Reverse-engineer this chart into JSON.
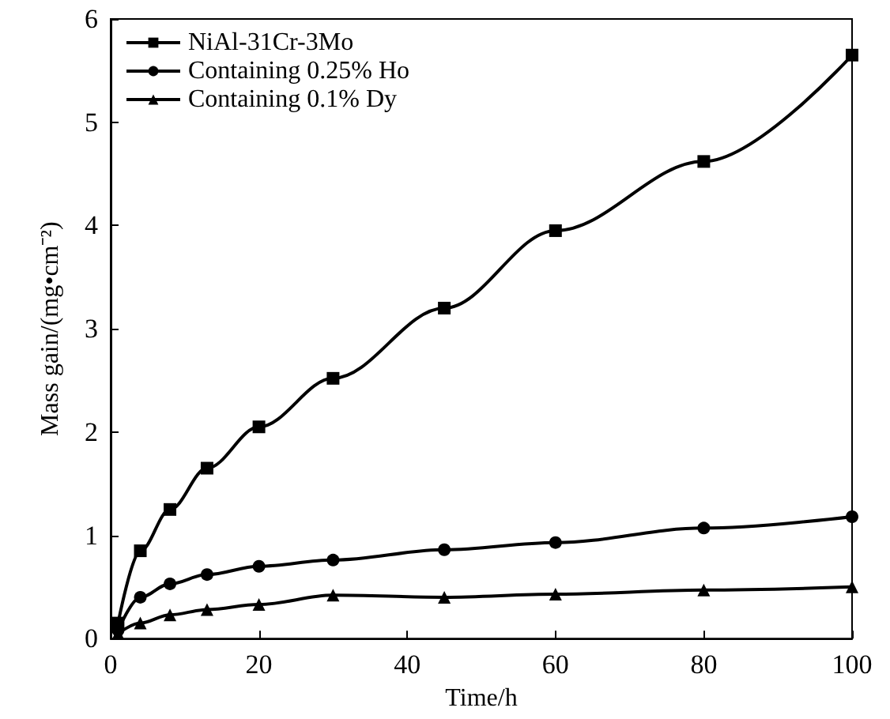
{
  "chart_data": {
    "type": "line",
    "xlabel": "Time/h",
    "ylabel": "Mass gain/(mg•cm⁻²)",
    "xlim": [
      0,
      100
    ],
    "xticks": [
      0,
      20,
      40,
      60,
      80,
      100
    ],
    "ylim": [
      0,
      6
    ],
    "yticks": [
      0,
      1,
      2,
      3,
      4,
      5,
      6
    ],
    "grid": false,
    "legend": "top left",
    "line_style": "solid",
    "series": [
      {
        "name": "NiAl-31Cr-3Mo",
        "color": "#000000",
        "marker": "square",
        "x": [
          1,
          4,
          8,
          13,
          20,
          30,
          45,
          60,
          80,
          100
        ],
        "values": [
          0.15,
          0.85,
          1.25,
          1.65,
          2.05,
          2.52,
          3.2,
          3.95,
          4.62,
          5.65
        ]
      },
      {
        "name": "Containing 0.25% Ho",
        "color": "#000000",
        "marker": "circle",
        "x": [
          1,
          4,
          8,
          13,
          20,
          30,
          45,
          60,
          80,
          100
        ],
        "values": [
          0.08,
          0.4,
          0.53,
          0.62,
          0.7,
          0.76,
          0.86,
          0.93,
          1.07,
          1.18
        ]
      },
      {
        "name": "Containing 0.1% Dy",
        "color": "#000000",
        "marker": "triangle",
        "x": [
          1,
          4,
          8,
          13,
          20,
          30,
          45,
          60,
          80,
          100
        ],
        "values": [
          0.05,
          0.15,
          0.23,
          0.28,
          0.33,
          0.42,
          0.4,
          0.43,
          0.47,
          0.5
        ]
      }
    ]
  }
}
